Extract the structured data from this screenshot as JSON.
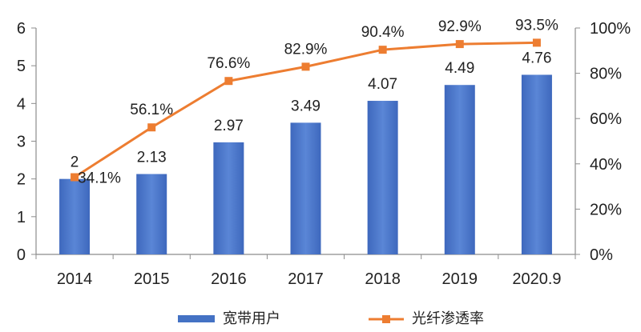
{
  "chart_data": {
    "type": "bar",
    "categories": [
      "2014",
      "2015",
      "2016",
      "2017",
      "2018",
      "2019",
      "2020.9"
    ],
    "series": [
      {
        "name": "宽带用户",
        "type": "bar",
        "axis": "left",
        "values": [
          2,
          2.13,
          2.97,
          3.49,
          4.07,
          4.49,
          4.76
        ],
        "labels": [
          "2",
          "2.13",
          "2.97",
          "3.49",
          "4.07",
          "4.49",
          "4.76"
        ]
      },
      {
        "name": "光纤渗透率",
        "type": "line",
        "axis": "right",
        "values": [
          34.1,
          56.1,
          76.6,
          82.9,
          90.4,
          92.9,
          93.5
        ],
        "labels": [
          "34.1%",
          "56.1%",
          "76.6%",
          "82.9%",
          "90.4%",
          "92.9%",
          "93.5%"
        ]
      }
    ],
    "y_left": {
      "ylim": [
        0,
        6
      ],
      "ticks": [
        "0",
        "1",
        "2",
        "3",
        "4",
        "5",
        "6"
      ]
    },
    "y_right": {
      "ylim": [
        0,
        100
      ],
      "ticks": [
        "0%",
        "20%",
        "40%",
        "60%",
        "80%",
        "100%"
      ]
    },
    "legend_position": "bottom",
    "colors": {
      "bar": "#4472C4",
      "line": "#ED7D31",
      "axis": "#8C8C8C"
    }
  }
}
